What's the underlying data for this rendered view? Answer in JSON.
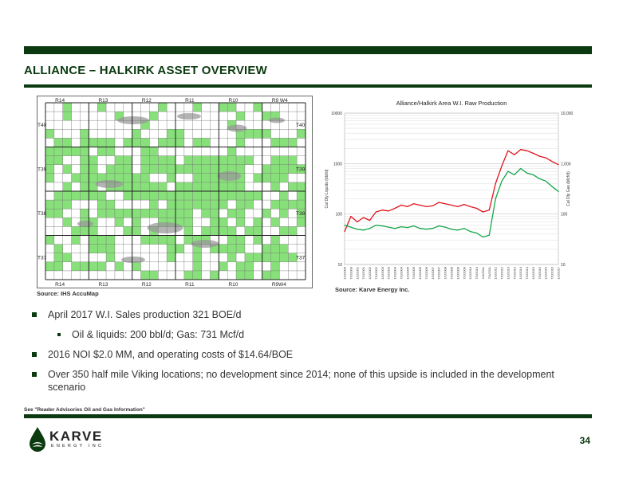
{
  "header": {
    "title": "ALLIANCE – HALKIRK ASSET OVERVIEW"
  },
  "map": {
    "range_labels_top": [
      "R14",
      "R13",
      "R12",
      "R11",
      "R10",
      "R9 W4"
    ],
    "range_labels_bottom": [
      "R14",
      "R13",
      "R12",
      "R11",
      "R10",
      "R9W4"
    ],
    "township_labels_left": [
      "T40",
      "T39",
      "T38",
      "T37"
    ],
    "township_labels_right": [
      "T40",
      "T39",
      "T38",
      "T37"
    ],
    "source": "Source: IHS AccuMap",
    "land_color": "#88e07a"
  },
  "chart_data": {
    "type": "line",
    "title": "Alliance/Halkirk Area W.I. Raw Production",
    "ylabel": "Cal Dly Liquids (bbl/d)",
    "y2label": "Cal Dly Gas (Mcf/d)",
    "yscale": "log",
    "ylim": [
      10,
      10000
    ],
    "yticks": [
      "10000",
      "1000",
      "100",
      "10"
    ],
    "y2lim": [
      10,
      10000
    ],
    "y2ticks": [
      "10,000",
      "1,000",
      "100",
      "10"
    ],
    "x": [
      "1/1/2000",
      "7/1/2000",
      "1/1/2001",
      "7/1/2001",
      "1/1/2002",
      "7/1/2002",
      "1/1/2003",
      "7/1/2003",
      "1/1/2004",
      "7/1/2004",
      "1/1/2005",
      "7/1/2005",
      "1/1/2006",
      "7/1/2006",
      "1/1/2007",
      "7/1/2007",
      "1/1/2008",
      "7/1/2008",
      "1/1/2009",
      "7/1/2009",
      "1/1/2010",
      "7/1/2010",
      "1/1/2011",
      "7/1/2011",
      "1/1/2012",
      "7/1/2012",
      "1/1/2013",
      "7/1/2013",
      "1/1/2014",
      "7/1/2014",
      "1/1/2015",
      "7/1/2015",
      "1/1/2016",
      "7/1/2016",
      "1/1/2017"
    ],
    "series": [
      {
        "color": "#e0141e",
        "values": [
          45,
          90,
          70,
          85,
          75,
          110,
          120,
          115,
          130,
          150,
          140,
          160,
          150,
          140,
          145,
          170,
          160,
          150,
          140,
          155,
          140,
          130,
          110,
          120,
          400,
          900,
          1800,
          1500,
          1900,
          1800,
          1600,
          1400,
          1300,
          1100,
          950
        ]
      },
      {
        "color": "#16a64a",
        "values": [
          60,
          55,
          50,
          48,
          52,
          60,
          58,
          55,
          52,
          56,
          54,
          58,
          52,
          50,
          52,
          58,
          55,
          50,
          48,
          52,
          45,
          42,
          35,
          38,
          200,
          450,
          700,
          600,
          800,
          650,
          600,
          500,
          450,
          350,
          280
        ]
      }
    ],
    "source": "Source: Karve Energy Inc."
  },
  "bullets": [
    {
      "text": "April 2017 W.I. Sales production 321 BOE/d",
      "level": 1
    },
    {
      "text": "Oil & liquids: 200 bbl/d; Gas: 731 Mcf/d",
      "level": 2
    },
    {
      "text": "2016 NOI $2.0 MM, and operating costs of $14.64/BOE",
      "level": 1
    },
    {
      "text": "Over 350 half mile Viking locations; no development since 2014; none of this upside is included in the development scenario",
      "level": 1
    }
  ],
  "footer": {
    "note": "See \"Reader Advisories Oil and Gas Information\"",
    "page_number": "34",
    "logo_word": "KARVE",
    "logo_sub": "ENERGY INC"
  },
  "colors": {
    "accent": "#0b3a10",
    "oil": "#e0141e",
    "gas": "#16a64a"
  }
}
